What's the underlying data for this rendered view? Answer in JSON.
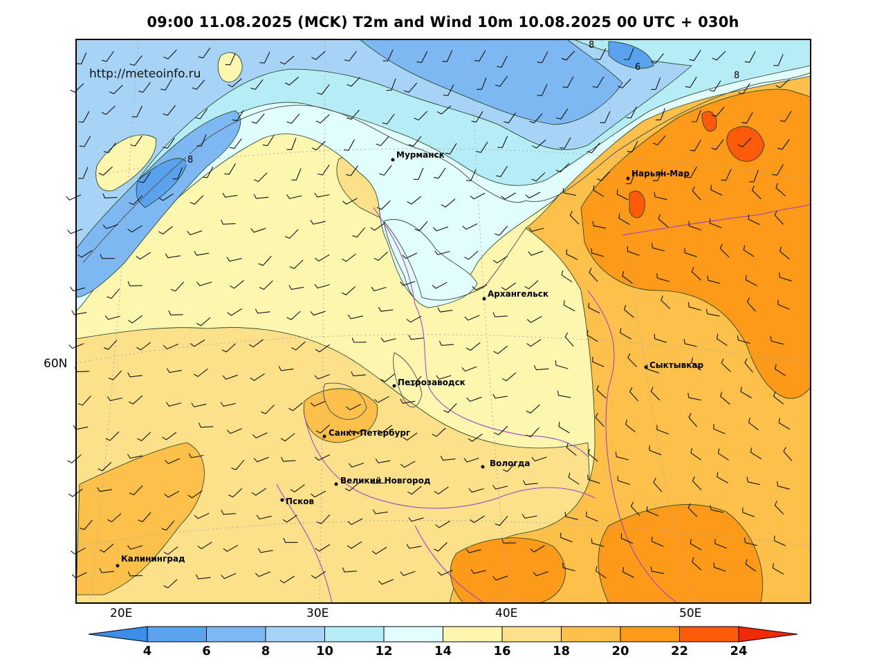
{
  "title": "09:00 11.08.2025 (MCK) T2m and Wind 10m 10.08.2025 00 UTC + 030h",
  "watermark": "http://meteoinfo.ru",
  "axes": {
    "x_ticks": [
      "20E",
      "30E",
      "40E",
      "50E"
    ],
    "y_ticks": [
      "60N"
    ]
  },
  "cities": [
    {
      "name": "Мурманск"
    },
    {
      "name": "Нарьян-Мар"
    },
    {
      "name": "Архангельск"
    },
    {
      "name": "Сыктывкар"
    },
    {
      "name": "Петрозаводск"
    },
    {
      "name": "Санкт-Петербург"
    },
    {
      "name": "Вологда"
    },
    {
      "name": "Великий Новгород"
    },
    {
      "name": "Псков"
    },
    {
      "name": "Калининград"
    }
  ],
  "contour_labels": [
    "8",
    "6",
    "8",
    "8"
  ],
  "colorbar": {
    "ticks": [
      "4",
      "6",
      "8",
      "10",
      "12",
      "14",
      "16",
      "18",
      "20",
      "22",
      "24"
    ],
    "colors": [
      "#3d8ee8",
      "#5aa2ee",
      "#7db8f2",
      "#a6d3f6",
      "#b6ecf6",
      "#e2fdfd",
      "#fdf6ae",
      "#fde08a",
      "#fdc04a",
      "#fd9a1a",
      "#fd5a0a",
      "#f02a04"
    ]
  },
  "map_colors": {
    "t4_6": "#5aa2ee",
    "t6_8": "#7db8f2",
    "t8_10": "#a6d3f6",
    "t10_12": "#b6ecf6",
    "t12_14": "#e2fdfd",
    "t14_16": "#fdf6ae",
    "t16_18": "#fde08a",
    "t18_20": "#fdc04a",
    "t20_22": "#fd9a1a",
    "t22_24": "#fd5a0a",
    "border": "#9a3ad0",
    "coast": "#666666",
    "grid": "#aaaaaa"
  }
}
